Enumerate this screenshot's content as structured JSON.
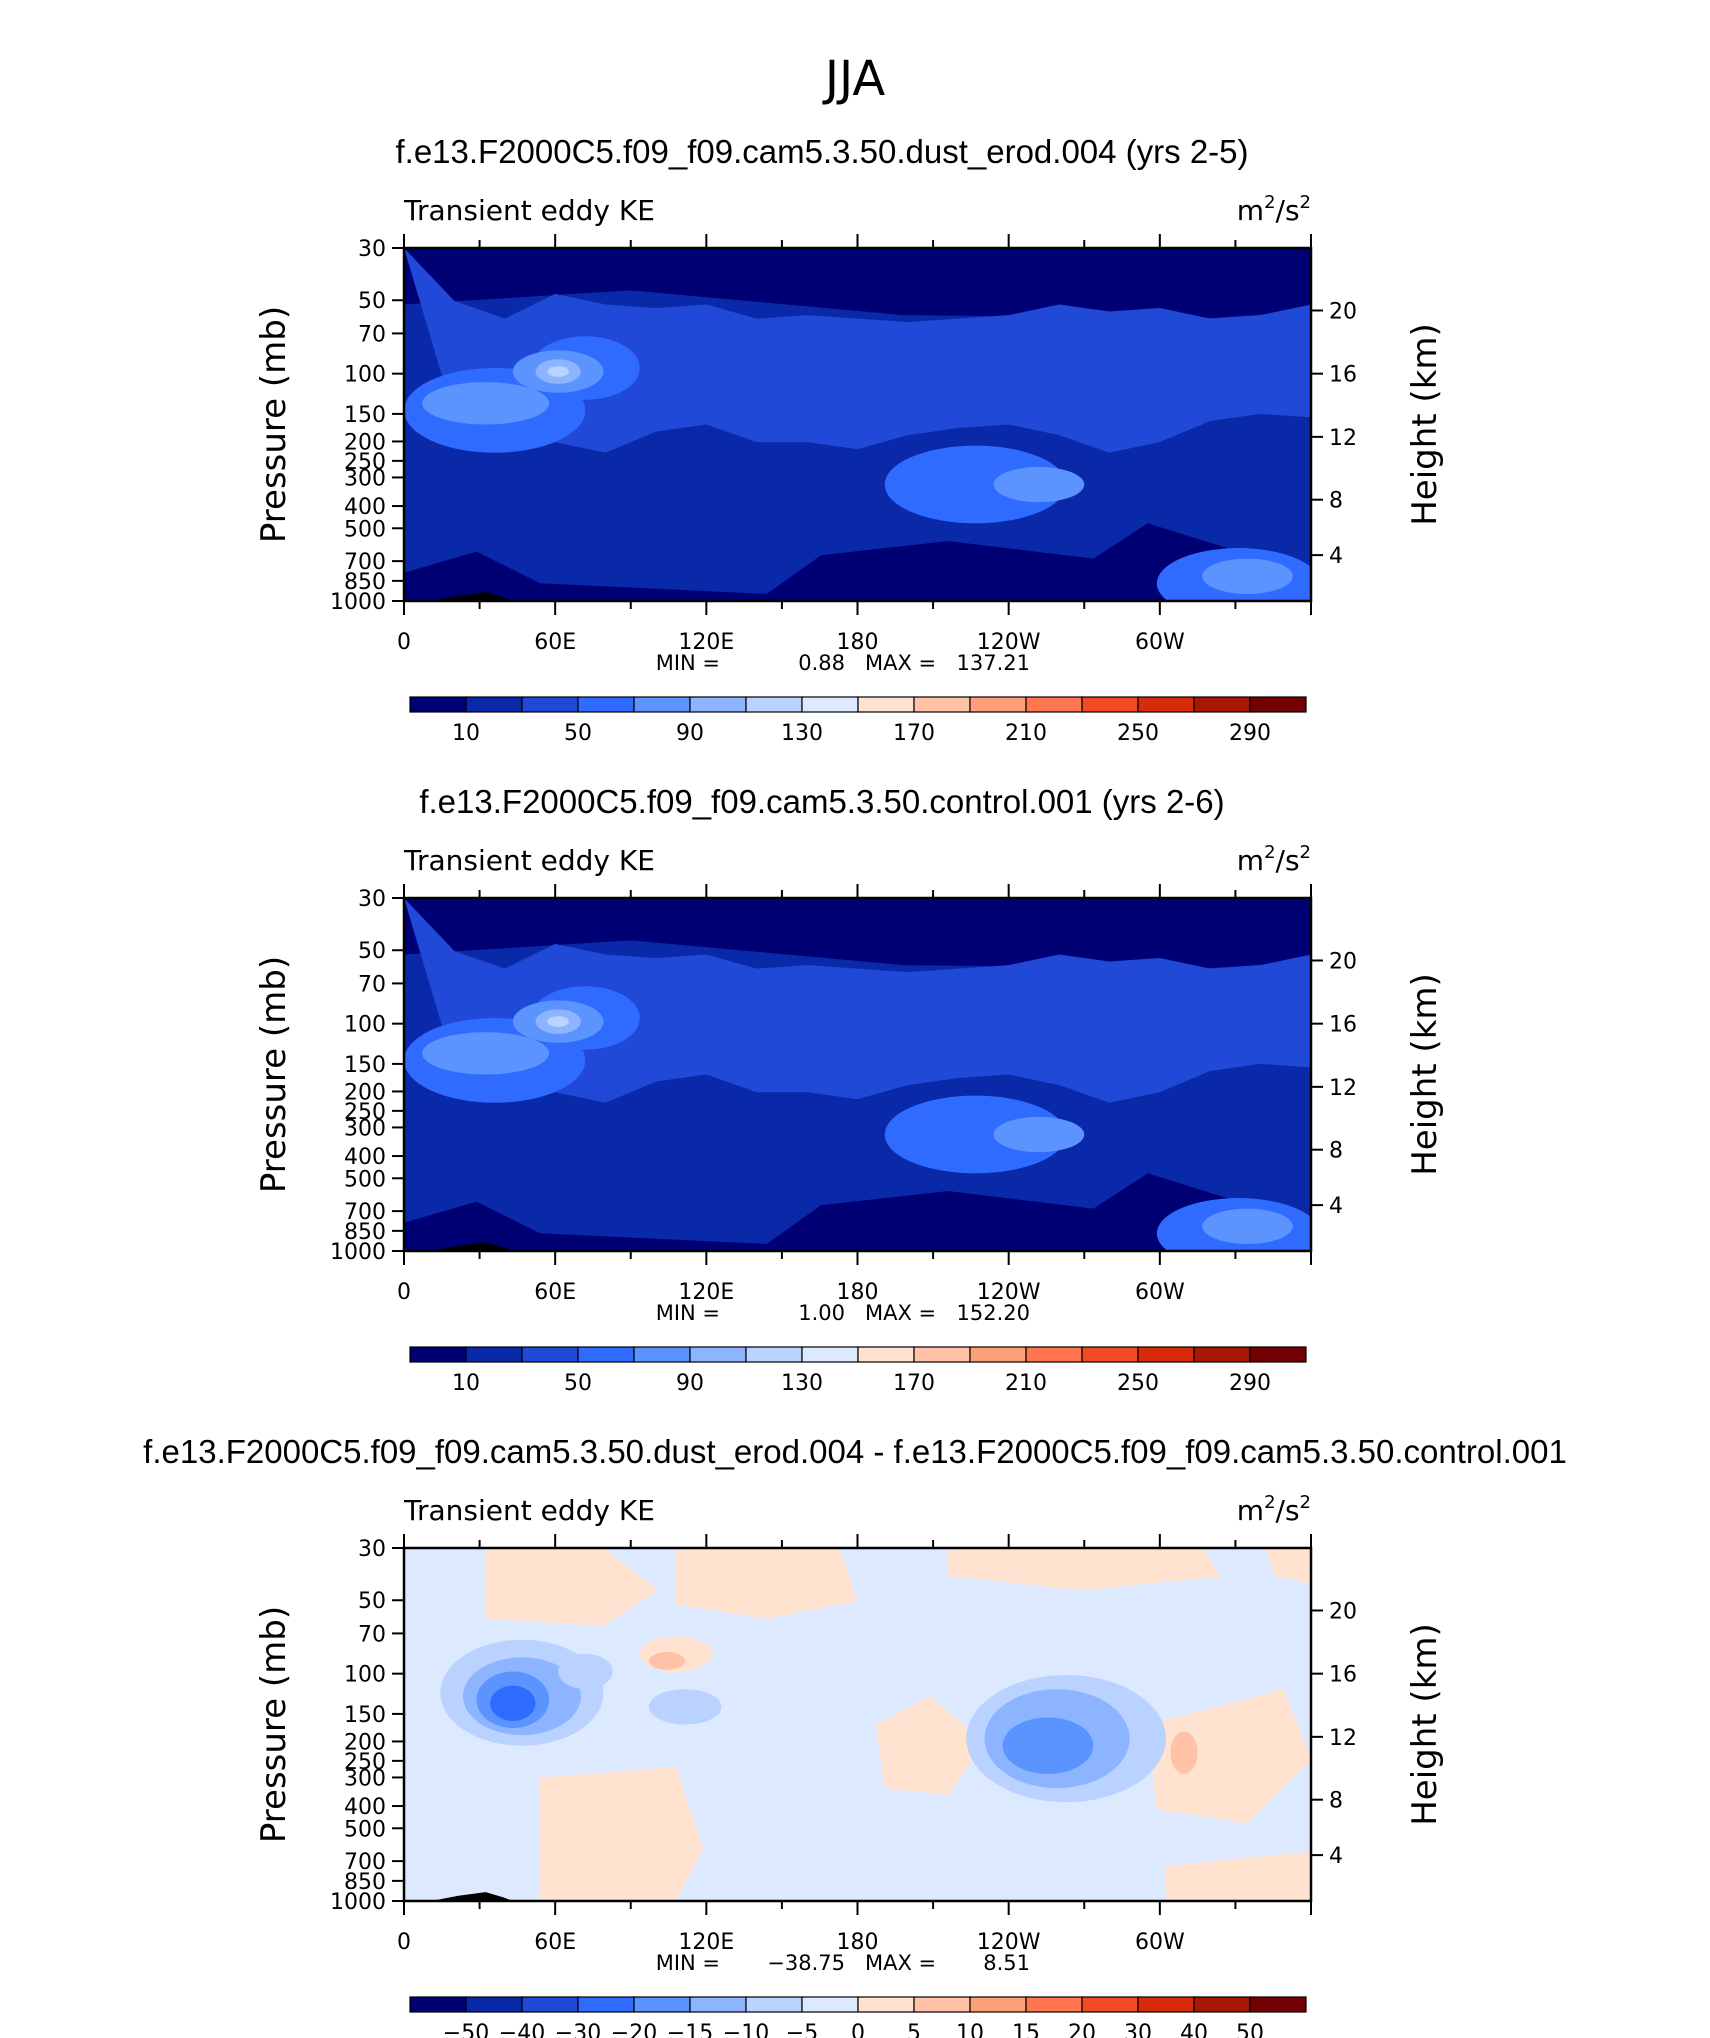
{
  "page_title": "JJA",
  "chart_data": [
    {
      "type": "heatmap",
      "title": "f.e13.F2000C5.f09_f09.cam5.3.50.dust_erod.004 (yrs 2-5)",
      "left_label": "Transient eddy KE",
      "units_base": "m",
      "units_exp1": "2",
      "units_mid": "/s",
      "units_exp2": "2",
      "ylabel": "Pressure (mb)",
      "ylabel_right": "Height (km)",
      "y_ticks": [
        "30",
        "50",
        "70",
        "100",
        "150",
        "200",
        "250",
        "300",
        "400",
        "500",
        "700",
        "850",
        "1000"
      ],
      "y_right_ticks": [
        "20",
        "16",
        "12",
        "8",
        "4"
      ],
      "x_ticks": [
        "0",
        "60E",
        "120E",
        "180",
        "120W",
        "60W"
      ],
      "min_label": "MIN =",
      "min_value": "0.88",
      "max_label": "MAX =",
      "max_value": "137.21",
      "colorbar_labels": [
        "10",
        "50",
        "90",
        "130",
        "170",
        "210",
        "250",
        "290"
      ],
      "colorbar_colors": [
        "#000075",
        "#0a29a8",
        "#1f49d6",
        "#2f6bff",
        "#5b93ff",
        "#8cb4ff",
        "#b9d2ff",
        "#dce9ff",
        "#ffe2cf",
        "#ffc2a6",
        "#ff9f7a",
        "#ff7650",
        "#f44a24",
        "#d72b0b",
        "#a81606",
        "#730002"
      ]
    },
    {
      "type": "heatmap",
      "title": "f.e13.F2000C5.f09_f09.cam5.3.50.control.001 (yrs 2-6)",
      "left_label": "Transient eddy KE",
      "units_base": "m",
      "units_exp1": "2",
      "units_mid": "/s",
      "units_exp2": "2",
      "ylabel": "Pressure (mb)",
      "ylabel_right": "Height (km)",
      "y_ticks": [
        "30",
        "50",
        "70",
        "100",
        "150",
        "200",
        "250",
        "300",
        "400",
        "500",
        "700",
        "850",
        "1000"
      ],
      "y_right_ticks": [
        "20",
        "16",
        "12",
        "8",
        "4"
      ],
      "x_ticks": [
        "0",
        "60E",
        "120E",
        "180",
        "120W",
        "60W"
      ],
      "min_label": "MIN =",
      "min_value": "1.00",
      "max_label": "MAX =",
      "max_value": "152.20",
      "colorbar_labels": [
        "10",
        "50",
        "90",
        "130",
        "170",
        "210",
        "250",
        "290"
      ],
      "colorbar_colors": [
        "#000075",
        "#0a29a8",
        "#1f49d6",
        "#2f6bff",
        "#5b93ff",
        "#8cb4ff",
        "#b9d2ff",
        "#dce9ff",
        "#ffe2cf",
        "#ffc2a6",
        "#ff9f7a",
        "#ff7650",
        "#f44a24",
        "#d72b0b",
        "#a81606",
        "#730002"
      ]
    },
    {
      "type": "heatmap",
      "title": "f.e13.F2000C5.f09_f09.cam5.3.50.dust_erod.004 - f.e13.F2000C5.f09_f09.cam5.3.50.control.001",
      "left_label": "Transient eddy KE",
      "units_base": "m",
      "units_exp1": "2",
      "units_mid": "/s",
      "units_exp2": "2",
      "ylabel": "Pressure (mb)",
      "ylabel_right": "Height (km)",
      "y_ticks": [
        "30",
        "50",
        "70",
        "100",
        "150",
        "200",
        "250",
        "300",
        "400",
        "500",
        "700",
        "850",
        "1000"
      ],
      "y_right_ticks": [
        "20",
        "16",
        "12",
        "8",
        "4"
      ],
      "x_ticks": [
        "0",
        "60E",
        "120E",
        "180",
        "120W",
        "60W"
      ],
      "min_label": "MIN =",
      "min_value": "−38.75",
      "max_label": "MAX =",
      "max_value": "8.51",
      "colorbar_labels": [
        "−50",
        "−40",
        "−30",
        "−20",
        "−15",
        "−10",
        "−5",
        "0",
        "5",
        "10",
        "15",
        "20",
        "30",
        "40",
        "50"
      ],
      "colorbar_colors": [
        "#000075",
        "#0a29a8",
        "#1f49d6",
        "#2f6bff",
        "#5b93ff",
        "#8cb4ff",
        "#b9d2ff",
        "#dce9ff",
        "#ffe2cf",
        "#ffc2a6",
        "#ff9f7a",
        "#ff7650",
        "#f44a24",
        "#d72b0b",
        "#a81606",
        "#730002"
      ]
    }
  ]
}
